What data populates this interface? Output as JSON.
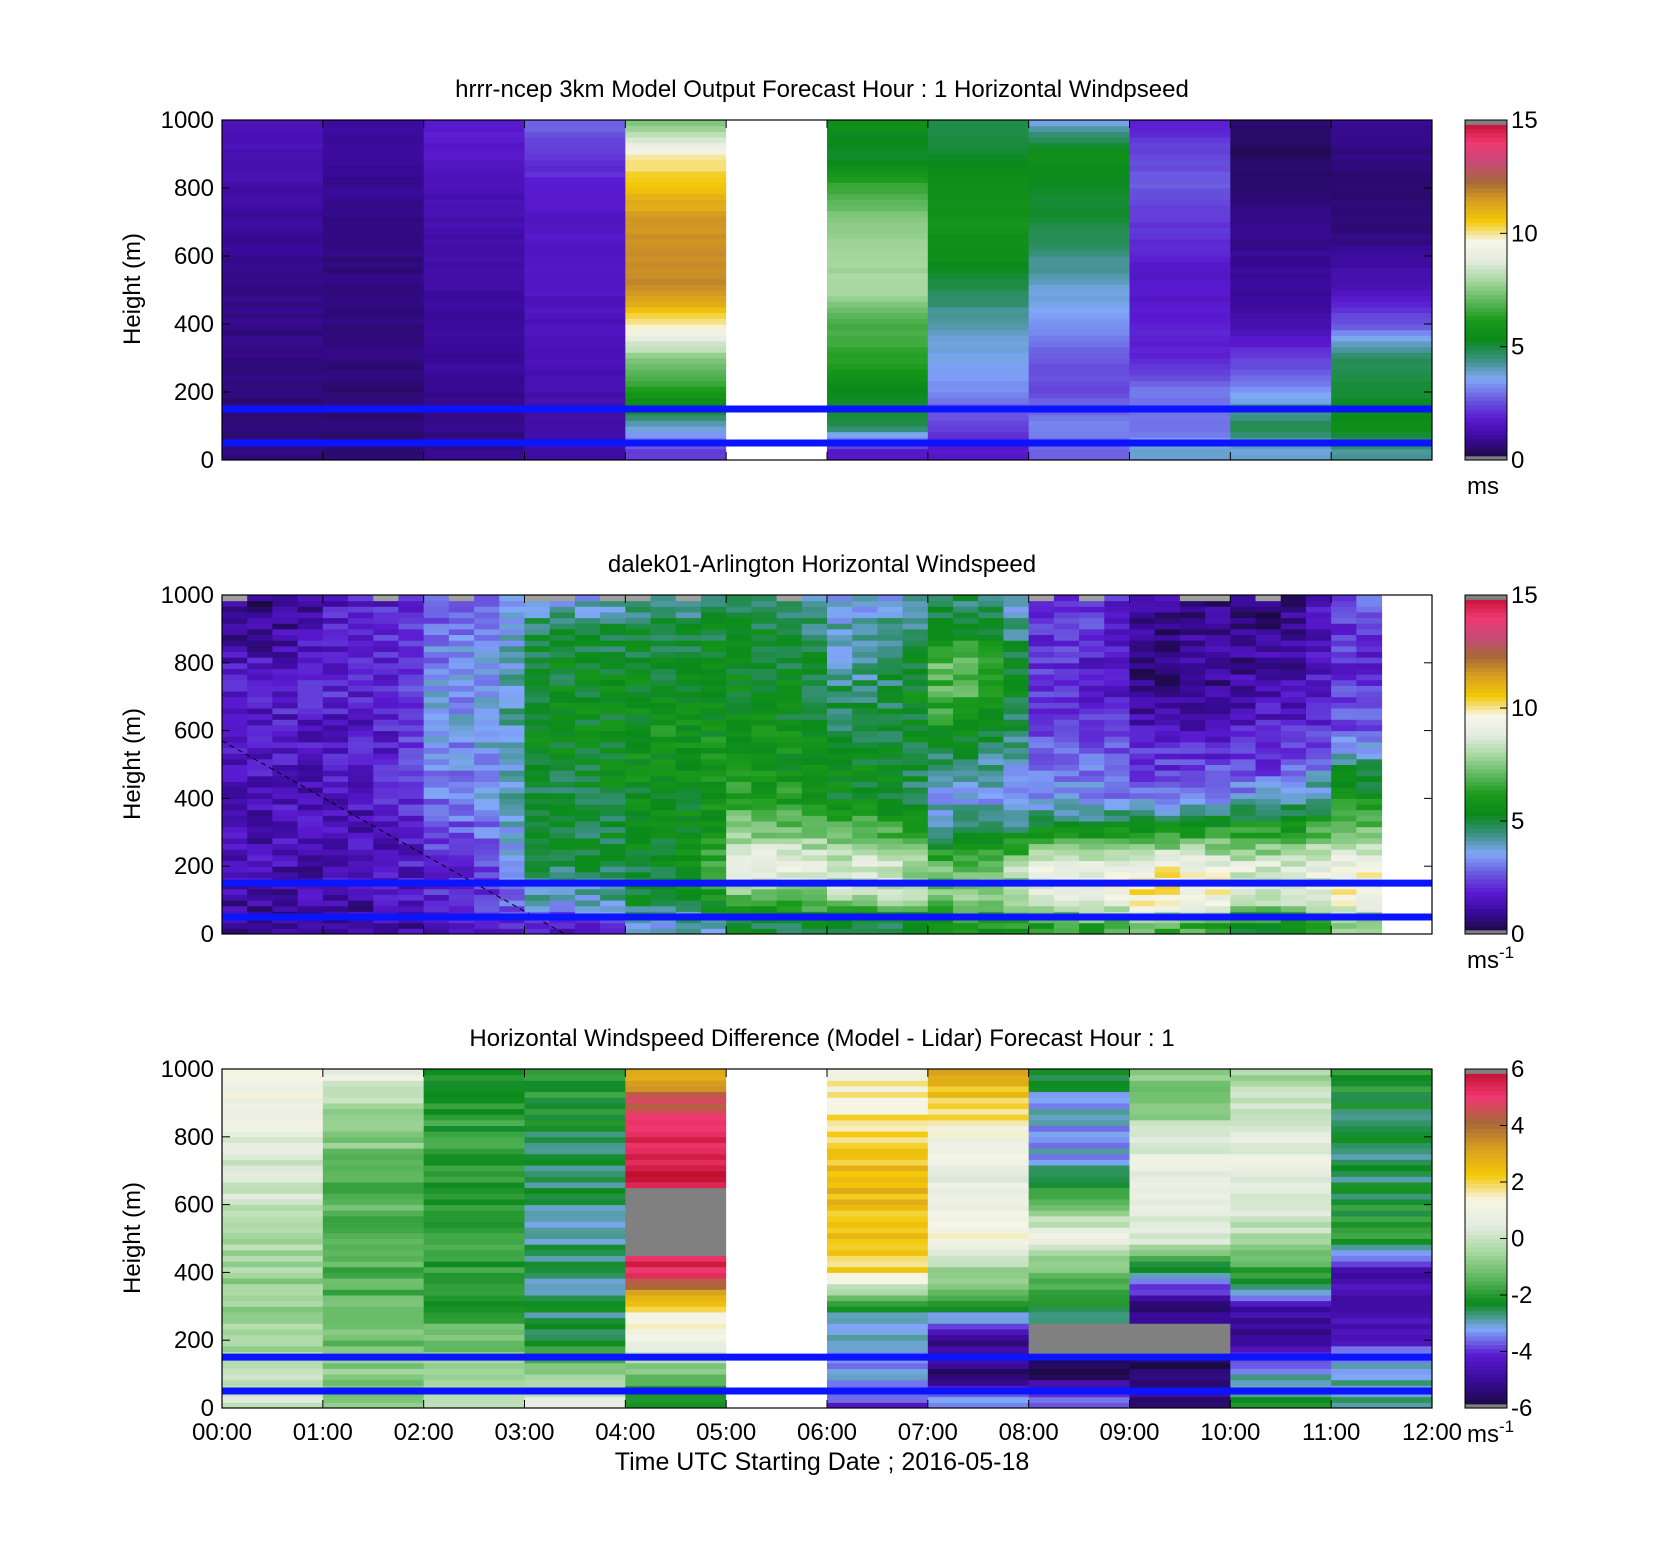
{
  "figure": {
    "xlabel": "Time UTC  Starting Date ; 2016-05-18",
    "x_tick_labels": [
      "00:00",
      "01:00",
      "02:00",
      "03:00",
      "04:00",
      "05:00",
      "06:00",
      "07:00",
      "08:00",
      "09:00",
      "10:00",
      "11:00",
      "12:00"
    ],
    "reference_heights_m": [
      150,
      50
    ],
    "reference_line_color": "#0a14ff"
  },
  "colormaps": {
    "windspeed": [
      "#1a0a40",
      "#3a0a9a",
      "#5a1ad0",
      "#6a5ae0",
      "#80a8f8",
      "#3a9080",
      "#0a8a1a",
      "#1a9a1a",
      "#60b860",
      "#a8d8a0",
      "#e4ece0",
      "#f6f6e6",
      "#f4c808",
      "#d8a020",
      "#a86838",
      "#c84878",
      "#f03870",
      "#c01030"
    ],
    "difference": [
      "#1a0a40",
      "#3a0a9a",
      "#5a1ad0",
      "#80a8f8",
      "#0a8a1a",
      "#60b860",
      "#a8d8a0",
      "#e4ece0",
      "#f6f6e6",
      "#f4c808",
      "#d8a020",
      "#a86838",
      "#f03870",
      "#c01030"
    ],
    "missing_color": "#a0a0a0"
  },
  "chart_data": [
    {
      "type": "heatmap",
      "title": "hrrr-ncep 3km Model Output   Forecast Hour : 1 Horizontal Windpseed",
      "ylabel": "Height (m)",
      "xlim": [
        "00:00",
        "12:00"
      ],
      "ylim": [
        0,
        1000
      ],
      "y_ticks": [
        0,
        200,
        400,
        600,
        800,
        1000
      ],
      "colorbar": {
        "ticks": [
          0,
          5,
          10,
          15
        ],
        "label": "ms",
        "label_superscript": "",
        "min": 0,
        "max": 15,
        "colormap": "windspeed"
      },
      "hours": [
        "00:00",
        "01:00",
        "02:00",
        "03:00",
        "04:00",
        "05:00",
        "06:00",
        "07:00",
        "08:00",
        "09:00",
        "10:00",
        "11:00"
      ],
      "heights_m": [
        1000,
        900,
        800,
        700,
        600,
        500,
        400,
        300,
        200,
        100,
        25
      ],
      "values_ms": [
        [
          1.4,
          1.0,
          1.8,
          2.8,
          7.2,
          null,
          5.6,
          4.8,
          3.6,
          1.8,
          0.4,
          0.8
        ],
        [
          1.3,
          0.9,
          1.6,
          2.2,
          9.8,
          null,
          5.0,
          5.2,
          5.6,
          2.4,
          0.3,
          0.6
        ],
        [
          1.1,
          0.8,
          1.3,
          1.8,
          10.8,
          null,
          6.6,
          5.6,
          5.2,
          2.6,
          0.5,
          0.5
        ],
        [
          0.9,
          0.7,
          1.2,
          1.6,
          11.6,
          null,
          7.6,
          5.8,
          5.0,
          2.2,
          0.7,
          0.5
        ],
        [
          0.8,
          0.6,
          1.1,
          1.6,
          11.8,
          null,
          7.8,
          5.6,
          4.4,
          1.8,
          0.8,
          0.9
        ],
        [
          0.7,
          0.6,
          1.0,
          1.5,
          11.8,
          null,
          8.0,
          4.8,
          3.8,
          1.6,
          0.9,
          1.3
        ],
        [
          0.7,
          0.6,
          0.9,
          1.4,
          10.0,
          null,
          6.8,
          4.0,
          3.4,
          1.8,
          1.2,
          2.6
        ],
        [
          0.6,
          0.6,
          0.9,
          1.3,
          7.6,
          null,
          6.4,
          3.6,
          2.6,
          1.9,
          2.2,
          4.8
        ],
        [
          0.6,
          0.5,
          0.8,
          1.2,
          6.2,
          null,
          5.2,
          3.2,
          2.4,
          3.0,
          3.4,
          5.0
        ],
        [
          0.5,
          0.5,
          0.7,
          1.1,
          4.0,
          null,
          4.8,
          2.2,
          3.2,
          2.8,
          4.8,
          5.6
        ],
        [
          0.6,
          0.5,
          0.7,
          1.0,
          2.2,
          null,
          1.6,
          1.6,
          2.8,
          3.8,
          3.8,
          4.2
        ]
      ]
    },
    {
      "type": "heatmap",
      "title": "dalek01-Arlington  Horizontal Windspeed",
      "ylabel": "Height (m)",
      "xlim": [
        "00:00",
        "12:00"
      ],
      "ylim": [
        0,
        1000
      ],
      "y_ticks": [
        0,
        200,
        400,
        600,
        800,
        1000
      ],
      "colorbar": {
        "ticks": [
          0,
          5,
          10,
          15
        ],
        "label": "ms",
        "label_superscript": "-1",
        "min": 0,
        "max": 15,
        "colormap": "windspeed"
      },
      "time_resolution_minutes": 15,
      "heights_m": [
        975,
        900,
        800,
        700,
        600,
        500,
        400,
        300,
        200,
        100,
        25
      ],
      "hourly_values_ms": [
        [
          0.6,
          1.6,
          2.6,
          3.6,
          4.4,
          4.6,
          3.6,
          4.8,
          2.4,
          0.9,
          0.5,
          2.6
        ],
        [
          0.9,
          1.8,
          3.0,
          4.8,
          5.0,
          5.2,
          4.0,
          5.4,
          2.2,
          0.8,
          0.7,
          2.2
        ],
        [
          1.4,
          1.8,
          3.2,
          5.2,
          5.2,
          5.4,
          4.2,
          7.0,
          2.0,
          0.7,
          1.0,
          2.0
        ],
        [
          1.6,
          1.8,
          3.4,
          5.4,
          5.4,
          5.4,
          4.6,
          6.8,
          2.2,
          0.9,
          1.3,
          2.2
        ],
        [
          1.6,
          1.6,
          3.4,
          5.4,
          5.8,
          5.6,
          5.0,
          5.8,
          2.4,
          1.6,
          1.8,
          2.6
        ],
        [
          1.5,
          1.6,
          3.2,
          5.2,
          5.6,
          5.8,
          5.4,
          4.4,
          3.2,
          2.2,
          2.2,
          4.6
        ],
        [
          1.4,
          1.5,
          3.0,
          5.0,
          5.4,
          6.2,
          5.4,
          3.6,
          3.2,
          3.0,
          3.6,
          5.8
        ],
        [
          1.3,
          1.4,
          2.6,
          5.0,
          5.4,
          7.6,
          7.0,
          4.6,
          5.8,
          6.2,
          6.4,
          7.6
        ],
        [
          1.2,
          1.3,
          2.2,
          4.6,
          5.2,
          9.2,
          8.6,
          7.2,
          9.0,
          9.6,
          8.8,
          9.4
        ],
        [
          1.0,
          1.2,
          2.0,
          3.8,
          5.2,
          6.8,
          8.0,
          7.4,
          9.0,
          10.2,
          8.4,
          9.6
        ],
        [
          0.9,
          1.0,
          1.4,
          1.8,
          3.6,
          5.0,
          4.8,
          5.8,
          6.4,
          6.8,
          5.6,
          7.4
        ]
      ]
    },
    {
      "type": "heatmap",
      "title": "Horizontal Windspeed Difference (Model - Lidar) Forecast Hour : 1",
      "ylabel": "Height (m)",
      "xlim": [
        "00:00",
        "12:00"
      ],
      "ylim": [
        0,
        1000
      ],
      "y_ticks": [
        0,
        200,
        400,
        600,
        800,
        1000
      ],
      "colorbar": {
        "ticks": [
          -6,
          -4,
          -2,
          0,
          2,
          4,
          6
        ],
        "label": "ms",
        "label_superscript": "-1",
        "min": -6,
        "max": 6,
        "colormap": "difference"
      },
      "hours": [
        "00:00",
        "01:00",
        "02:00",
        "03:00",
        "04:00",
        "05:00",
        "06:00",
        "07:00",
        "08:00",
        "09:00",
        "10:00",
        "11:00"
      ],
      "heights_m": [
        975,
        900,
        800,
        700,
        600,
        500,
        400,
        300,
        200,
        100,
        25
      ],
      "values_ms": [
        [
          1.2,
          0.6,
          -2.0,
          -2.0,
          3.0,
          null,
          1.4,
          2.8,
          -2.2,
          -0.6,
          -0.4,
          -2.0
        ],
        [
          1.0,
          -0.4,
          -2.0,
          -2.2,
          4.6,
          null,
          1.6,
          2.2,
          -3.2,
          -1.2,
          0.2,
          -2.2
        ],
        [
          0.6,
          -0.8,
          -2.0,
          -2.4,
          5.2,
          null,
          2.0,
          1.2,
          -3.4,
          0.4,
          0.6,
          -2.6
        ],
        [
          0.2,
          -1.4,
          -2.0,
          -2.6,
          5.6,
          null,
          2.6,
          0.6,
          -3.0,
          0.8,
          0.8,
          -2.6
        ],
        [
          0.0,
          -1.4,
          -2.0,
          -2.8,
          null,
          null,
          2.6,
          0.8,
          -1.2,
          0.8,
          0.4,
          -2.2
        ],
        [
          -0.4,
          -1.6,
          -2.0,
          -2.8,
          null,
          null,
          2.4,
          1.2,
          1.0,
          0.4,
          -0.4,
          -2.0
        ],
        [
          -0.6,
          -1.6,
          -2.0,
          -2.8,
          5.4,
          null,
          2.0,
          -0.6,
          -1.4,
          -3.0,
          -1.8,
          -4.6
        ],
        [
          -0.8,
          -1.4,
          -1.8,
          -2.6,
          1.8,
          null,
          -2.6,
          -2.4,
          -2.4,
          -5.2,
          -4.6,
          -5.0
        ],
        [
          -0.4,
          -1.2,
          -1.2,
          -2.6,
          1.0,
          null,
          -3.0,
          -5.0,
          null,
          null,
          -5.4,
          -4.2
        ],
        [
          -0.2,
          -0.8,
          -0.6,
          -0.6,
          -1.4,
          null,
          -3.4,
          -5.4,
          -5.6,
          -5.8,
          -3.2,
          -3.0
        ],
        [
          0.2,
          -1.0,
          -0.4,
          0.4,
          -2.0,
          null,
          -4.0,
          -3.6,
          -3.4,
          -5.2,
          -2.4,
          -3.0
        ]
      ]
    }
  ]
}
